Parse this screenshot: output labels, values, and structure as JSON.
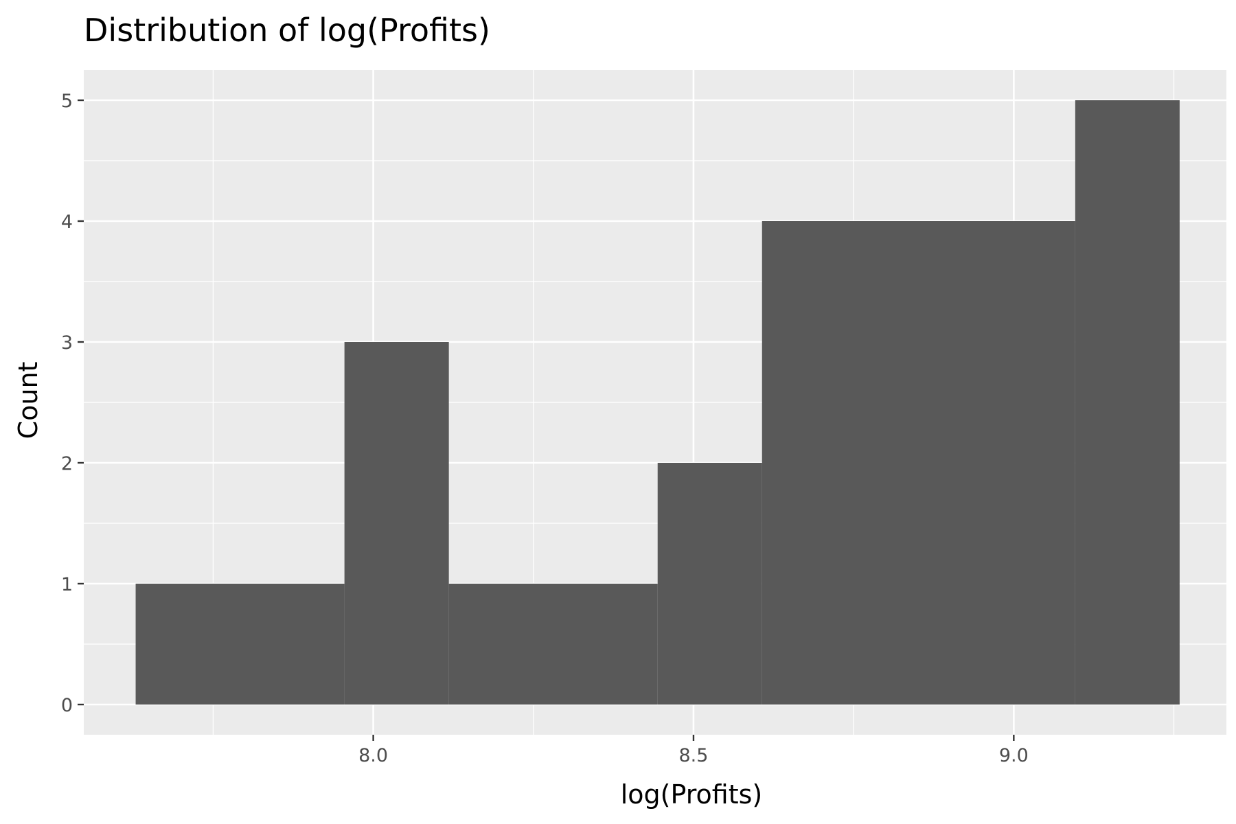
{
  "chart_data": {
    "type": "histogram",
    "title": "Distribution of log(Profits)",
    "xlabel": "log(Profits)",
    "ylabel": "Count",
    "bins": [
      {
        "x0": 7.629,
        "x1": 7.955,
        "count": 1
      },
      {
        "x0": 7.955,
        "x1": 8.118,
        "count": 3
      },
      {
        "x0": 8.118,
        "x1": 8.444,
        "count": 1
      },
      {
        "x0": 8.444,
        "x1": 8.607,
        "count": 2
      },
      {
        "x0": 8.607,
        "x1": 9.096,
        "count": 4
      },
      {
        "x0": 9.096,
        "x1": 9.259,
        "count": 5
      }
    ],
    "xlim": [
      7.548,
      9.332
    ],
    "ylim": [
      -0.25,
      5.25
    ],
    "x_ticks": [
      "8.0",
      "8.5",
      "9.0"
    ],
    "x_tick_values": [
      8.0,
      8.5,
      9.0
    ],
    "x_minor_tick_values": [
      7.75,
      8.25,
      8.75,
      9.25
    ],
    "y_ticks": [
      "0",
      "1",
      "2",
      "3",
      "4",
      "5"
    ],
    "y_tick_values": [
      0,
      1,
      2,
      3,
      4,
      5
    ],
    "y_minor_tick_values": [
      0.5,
      1.5,
      2.5,
      3.5,
      4.5
    ],
    "grid": true,
    "legend": "none",
    "colors": {
      "panel_background": "#ebebeb",
      "grid": "#ffffff",
      "bar_fill": "#595959",
      "tick_mark": "#333333",
      "tick_text": "#4d4d4d"
    }
  }
}
